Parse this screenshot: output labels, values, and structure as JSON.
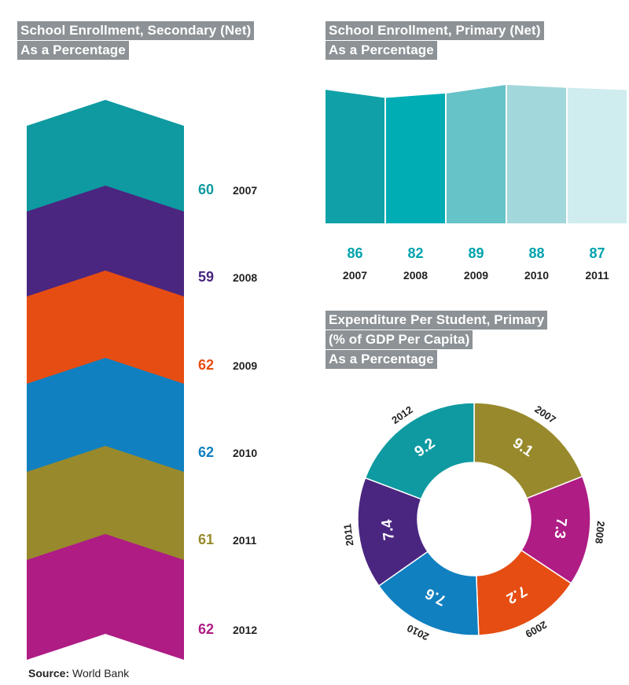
{
  "secondary": {
    "title": "School Enrollment, Secondary (Net)",
    "subtitle": "As a Percentage"
  },
  "primary": {
    "title": "School Enrollment, Primary (Net)",
    "subtitle": "As a Percentage"
  },
  "expenditure": {
    "title_line1": "Expenditure Per Student, Primary",
    "title_line2": "(% of GDP Per Capita)",
    "subtitle": "As a Percentage"
  },
  "source": {
    "label": "Source:",
    "value": "World Bank"
  },
  "chart_data": [
    {
      "type": "bar",
      "title": "School Enrollment, Secondary (Net)",
      "subtitle": "As a Percentage",
      "categories": [
        "2007",
        "2008",
        "2009",
        "2010",
        "2011",
        "2012"
      ],
      "values": [
        60,
        59,
        62,
        62,
        61,
        62
      ],
      "colors": [
        "#0e9aa0",
        "#4a2680",
        "#e64d12",
        "#1080c0",
        "#988a2c",
        "#ae1c84"
      ]
    },
    {
      "type": "bar",
      "title": "School Enrollment, Primary (Net)",
      "subtitle": "As a Percentage",
      "categories": [
        "2007",
        "2008",
        "2009",
        "2010",
        "2011"
      ],
      "values": [
        86,
        82,
        89,
        88,
        87
      ],
      "colors": [
        "#10a1a8",
        "#00adb5",
        "#66c3c8",
        "#a2d7db",
        "#cfecee"
      ],
      "value_color": "#00a3ad"
    },
    {
      "type": "pie",
      "title": "Expenditure Per Student, Primary (% of GDP Per Capita)",
      "subtitle": "As a Percentage",
      "categories": [
        "2007",
        "2008",
        "2009",
        "2010",
        "2011",
        "2012"
      ],
      "values": [
        9.1,
        7.3,
        7.2,
        7.6,
        7.4,
        9.2
      ],
      "colors": [
        "#988a2c",
        "#ae1c84",
        "#e64d12",
        "#1080c0",
        "#4a2680",
        "#0e9aa0"
      ],
      "donut": true
    }
  ]
}
